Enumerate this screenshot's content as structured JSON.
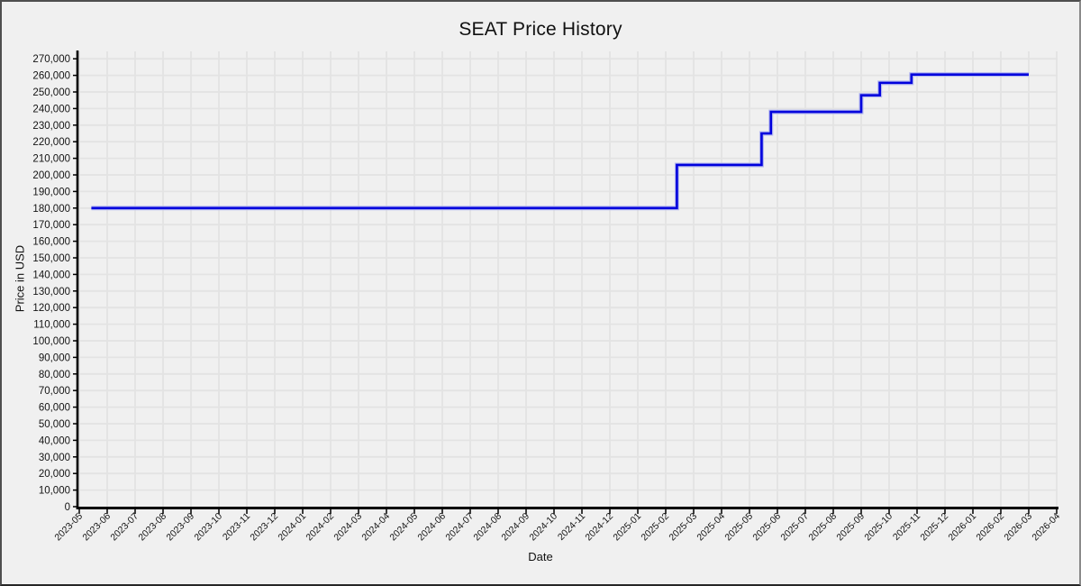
{
  "page": {
    "background_color": "#f0f0f0",
    "frame_border_color": "#4e4e4e"
  },
  "chart_data": {
    "type": "line",
    "subtype": "step",
    "title": "SEAT Price History",
    "xlabel": "Date",
    "ylabel": "Price in USD",
    "grid": true,
    "legend": "none",
    "x_range": [
      "2023-05",
      "2026-04"
    ],
    "ylim": [
      0,
      274500
    ],
    "y_tick_step": 10000,
    "line_color": "#0000dd",
    "line_halo_color": "#b4b8ef",
    "grid_color": "#e3e3e3",
    "axis_color": "#000000",
    "series": [
      {
        "name": "SEAT price",
        "points": [
          {
            "date": "2023-05-14",
            "price": 180000
          },
          {
            "date": "2025-02-13",
            "price": 206000
          },
          {
            "date": "2025-05-14",
            "price": 225000
          },
          {
            "date": "2025-05-24",
            "price": 238000
          },
          {
            "date": "2025-08-31",
            "price": 248000
          },
          {
            "date": "2025-09-21",
            "price": 255500
          },
          {
            "date": "2025-10-25",
            "price": 260500
          },
          {
            "date": "2026-03-01",
            "price": 260500
          }
        ]
      }
    ],
    "x_tick_labels": [
      "2023-05",
      "2023-06",
      "2023-07",
      "2023-08",
      "2023-09",
      "2023-10",
      "2023-11",
      "2023-12",
      "2024-01",
      "2024-02",
      "2024-03",
      "2024-04",
      "2024-05",
      "2024-06",
      "2024-07",
      "2024-08",
      "2024-09",
      "2024-10",
      "2024-11",
      "2024-12",
      "2025-01",
      "2025-02",
      "2025-03",
      "2025-04",
      "2025-05",
      "2025-06",
      "2025-07",
      "2025-08",
      "2025-09",
      "2025-10",
      "2025-11",
      "2025-12",
      "2026-01",
      "2026-02",
      "2026-03",
      "2026-04"
    ],
    "y_tick_labels": [
      "0",
      "10,000",
      "20,000",
      "30,000",
      "40,000",
      "50,000",
      "60,000",
      "70,000",
      "80,000",
      "90,000",
      "100,000",
      "110,000",
      "120,000",
      "130,000",
      "140,000",
      "150,000",
      "160,000",
      "170,000",
      "180,000",
      "190,000",
      "200,000",
      "210,000",
      "220,000",
      "230,000",
      "240,000",
      "250,000",
      "260,000",
      "270,000"
    ]
  }
}
